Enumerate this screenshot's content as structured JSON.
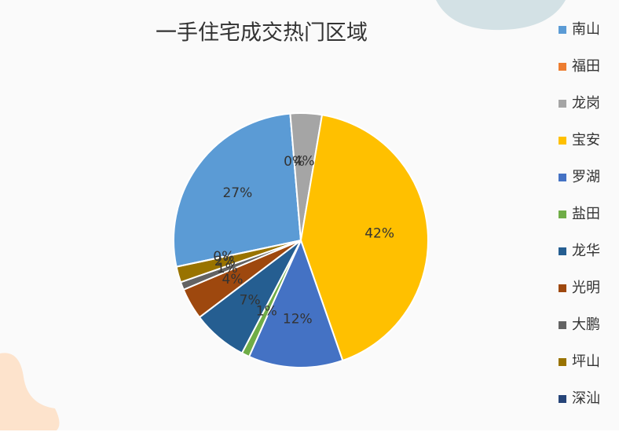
{
  "chart_data": {
    "type": "pie",
    "title": "一手住宅成交热门区域",
    "categories": [
      "南山",
      "福田",
      "龙岗",
      "宝安",
      "罗湖",
      "盐田",
      "龙华",
      "光明",
      "大鹏",
      "坪山",
      "深汕"
    ],
    "values": [
      27,
      0,
      4,
      42,
      12,
      1,
      7,
      4,
      1,
      2,
      0
    ],
    "value_labels": [
      "27%",
      "0%",
      "4%",
      "42%",
      "12%",
      "1%",
      "7%",
      "4%",
      "1%",
      "2%",
      "0%"
    ],
    "colors": [
      "#5b9bd5",
      "#ed7d31",
      "#a5a5a5",
      "#ffc000",
      "#4472c4",
      "#70ad47",
      "#255e91",
      "#9e480e",
      "#636363",
      "#997300",
      "#264478"
    ],
    "legend": "right"
  }
}
